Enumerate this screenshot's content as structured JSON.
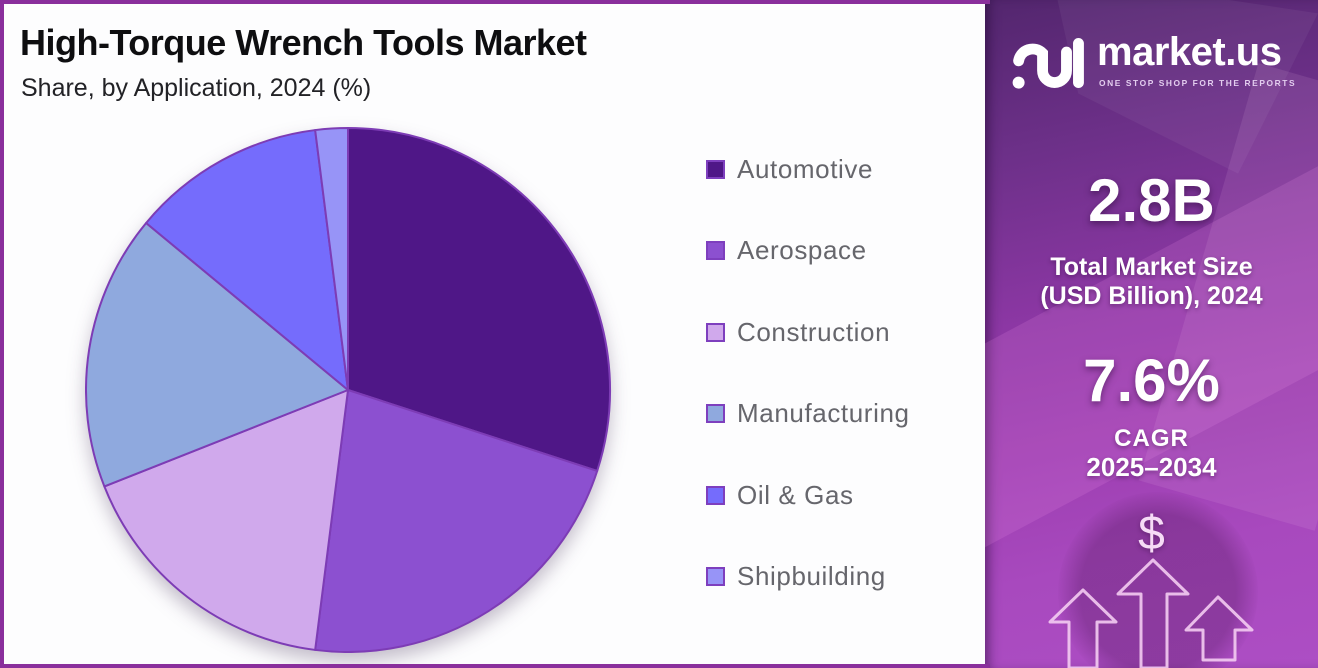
{
  "header": {
    "title": "High-Torque Wrench Tools Market",
    "subtitle": "Share, by Application, 2024 (%)"
  },
  "chart_data": {
    "type": "pie",
    "title": "High-Torque Wrench Tools Market — Share, by Application, 2024 (%)",
    "categories": [
      "Automotive",
      "Aerospace",
      "Construction",
      "Manufacturing",
      "Oil & Gas",
      "Shipbuilding"
    ],
    "values": [
      30,
      22,
      17,
      17,
      12,
      2
    ],
    "unit": "%",
    "colors": [
      "#4F1787",
      "#8C50D0",
      "#D0A9EC",
      "#8FA9DE",
      "#756CFC",
      "#9794F7"
    ],
    "slice_border_color": "#7D3CB5",
    "swatch_border_color": "#7E3FBE",
    "start_angle_deg": 0,
    "direction": "clockwise",
    "legend_position": "right",
    "data_labels_shown": false
  },
  "frame": {
    "border_color": "#8A2F9C"
  },
  "panel": {
    "brand": {
      "name": "market.us",
      "tagline": "ONE STOP SHOP FOR THE REPORTS"
    },
    "market_size": {
      "value": "2.8B",
      "label_line1": "Total Market Size",
      "label_line2": "(USD Billion), 2024"
    },
    "cagr": {
      "value": "7.6%",
      "label_line1": "CAGR",
      "label_line2": "2025–2034"
    },
    "currency_symbol": "$",
    "colors": {
      "top": "#53266E",
      "bottom": "#AD4EC4"
    }
  }
}
